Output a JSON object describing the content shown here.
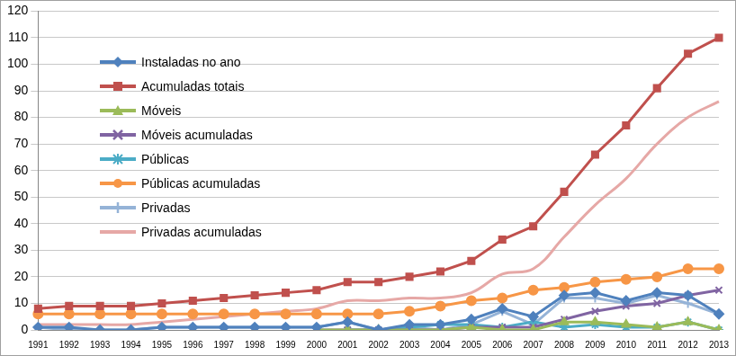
{
  "chart_data": {
    "type": "line",
    "categories": [
      "1991",
      "1992",
      "1993",
      "1994",
      "1995",
      "1996",
      "1997",
      "1998",
      "1999",
      "2000",
      "2001",
      "2002",
      "2003",
      "2004",
      "2005",
      "2006",
      "2007",
      "2008",
      "2009",
      "2010",
      "2011",
      "2012",
      "2013"
    ],
    "ylim": [
      0,
      120
    ],
    "yticks": [
      0,
      10,
      20,
      30,
      40,
      50,
      60,
      70,
      80,
      90,
      100,
      110,
      120
    ],
    "grid": true,
    "legend": "upper left",
    "series": [
      {
        "name": "Instaladas no ano",
        "color": "#4F81BD",
        "marker": "diamond",
        "values": [
          1,
          1,
          0,
          0,
          1,
          1,
          1,
          1,
          1,
          1,
          3,
          0,
          2,
          2,
          4,
          8,
          5,
          13,
          14,
          11,
          14,
          13,
          6
        ]
      },
      {
        "name": "Acumuladas totais",
        "color": "#C0504D",
        "marker": "square",
        "values": [
          8,
          9,
          9,
          9,
          10,
          11,
          12,
          13,
          14,
          15,
          18,
          18,
          20,
          22,
          26,
          34,
          39,
          52,
          66,
          77,
          91,
          104,
          110
        ]
      },
      {
        "name": "Móveis",
        "color": "#9BBB59",
        "marker": "triangle",
        "values": [
          null,
          null,
          null,
          null,
          null,
          null,
          null,
          null,
          null,
          0,
          0,
          0,
          0,
          0,
          1,
          0,
          0,
          3,
          3,
          2,
          1,
          3,
          0
        ]
      },
      {
        "name": "Móveis acumuladas",
        "color": "#8064A2",
        "marker": "x",
        "values": [
          null,
          null,
          null,
          null,
          null,
          null,
          null,
          null,
          null,
          0,
          0,
          0,
          0,
          0,
          1,
          1,
          1,
          4,
          7,
          9,
          10,
          13,
          15
        ]
      },
      {
        "name": "Públicas",
        "color": "#4BACC6",
        "marker": "asterisk",
        "values": [
          null,
          null,
          null,
          null,
          null,
          null,
          null,
          null,
          null,
          null,
          0,
          0,
          1,
          2,
          2,
          1,
          3,
          1,
          2,
          1,
          1,
          3,
          0
        ]
      },
      {
        "name": "Públicas acumuladas",
        "color": "#F79646",
        "marker": "circle",
        "values": [
          6,
          6,
          6,
          6,
          6,
          6,
          6,
          6,
          6,
          6,
          6,
          6,
          7,
          9,
          11,
          12,
          15,
          16,
          18,
          19,
          20,
          23,
          23
        ]
      },
      {
        "name": "Privadas",
        "color": "#95B3D7",
        "marker": "plus",
        "values": [
          1,
          0,
          0,
          0,
          1,
          1,
          1,
          1,
          1,
          1,
          3,
          0,
          1,
          0,
          2,
          7,
          2,
          12,
          12,
          10,
          13,
          10,
          6
        ]
      },
      {
        "name": "Privadas acumuladas",
        "color": "#E6A8A6",
        "marker": "none",
        "line_style": "smooth",
        "values": [
          2,
          2,
          2,
          2,
          3,
          4,
          5,
          6,
          7,
          8,
          11,
          11,
          12,
          12,
          14,
          21,
          23,
          35,
          47,
          57,
          70,
          80,
          86
        ]
      }
    ]
  }
}
